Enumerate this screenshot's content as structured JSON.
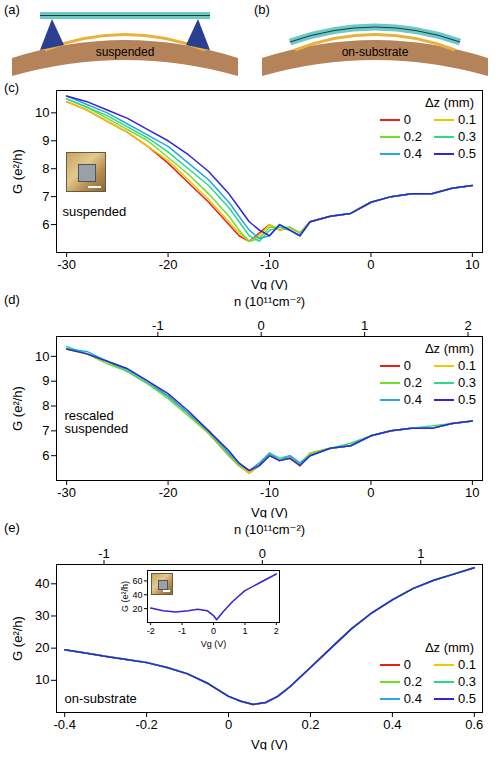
{
  "diagrams": [
    {
      "panel": "(a)",
      "label": "suspended"
    },
    {
      "panel": "(b)",
      "label": "on-substrate"
    }
  ],
  "chart_data": [
    {
      "panel": "(c)",
      "type": "line",
      "xlabel": "Vg (V)",
      "ylabel": "G (e²/h)",
      "annotations": [
        "suspended"
      ],
      "legend": "top-right",
      "legend_title": "Δz (mm)",
      "xlim": [
        -31,
        11
      ],
      "xticks": [
        -30,
        -20,
        -10,
        0,
        10
      ],
      "ylim": [
        5,
        10.8
      ],
      "yticks": [
        6,
        7,
        8,
        9,
        10
      ],
      "x": [
        -30,
        -28,
        -26,
        -24,
        -22,
        -20,
        -18,
        -16,
        -14,
        -13,
        -12,
        -11,
        -10,
        -9,
        -8,
        -7,
        -6,
        -4,
        -2,
        0,
        2,
        4,
        6,
        8,
        10
      ],
      "series": [
        {
          "name": "0",
          "color": "#e8201a",
          "values": [
            10.4,
            10.1,
            9.7,
            9.3,
            8.8,
            8.2,
            7.5,
            6.8,
            6.0,
            5.6,
            5.4,
            5.7,
            6.0,
            5.8,
            5.9,
            5.7,
            6.1,
            6.3,
            6.4,
            6.8,
            7.0,
            7.1,
            7.1,
            7.3,
            7.4
          ]
        },
        {
          "name": "0.1",
          "color": "#f0c800",
          "values": [
            10.4,
            10.1,
            9.7,
            9.3,
            8.8,
            8.3,
            7.6,
            6.9,
            6.1,
            5.7,
            5.4,
            5.6,
            6.0,
            5.8,
            5.9,
            5.7,
            6.1,
            6.3,
            6.4,
            6.8,
            7.0,
            7.1,
            7.1,
            7.3,
            7.4
          ]
        },
        {
          "name": "0.2",
          "color": "#6fe02a",
          "values": [
            10.5,
            10.2,
            9.8,
            9.4,
            9.0,
            8.4,
            7.8,
            7.1,
            6.3,
            5.8,
            5.4,
            5.5,
            5.9,
            5.9,
            5.9,
            5.7,
            6.1,
            6.3,
            6.4,
            6.8,
            7.0,
            7.1,
            7.1,
            7.3,
            7.4
          ]
        },
        {
          "name": "0.3",
          "color": "#2ed88a",
          "values": [
            10.5,
            10.2,
            9.9,
            9.5,
            9.1,
            8.6,
            8.0,
            7.4,
            6.6,
            6.1,
            5.6,
            5.4,
            5.8,
            5.9,
            5.8,
            5.6,
            6.1,
            6.3,
            6.4,
            6.8,
            7.0,
            7.1,
            7.1,
            7.3,
            7.4
          ]
        },
        {
          "name": "0.4",
          "color": "#29a9e0",
          "values": [
            10.6,
            10.3,
            10.0,
            9.6,
            9.2,
            8.8,
            8.2,
            7.6,
            6.8,
            6.3,
            5.8,
            5.5,
            5.6,
            6.0,
            5.8,
            5.6,
            6.1,
            6.3,
            6.4,
            6.8,
            7.0,
            7.1,
            7.1,
            7.3,
            7.4
          ]
        },
        {
          "name": "0.5",
          "color": "#3425d0",
          "values": [
            10.6,
            10.4,
            10.1,
            9.8,
            9.4,
            9.0,
            8.5,
            7.9,
            7.1,
            6.6,
            6.1,
            5.8,
            5.6,
            6.0,
            5.8,
            5.6,
            6.1,
            6.3,
            6.4,
            6.8,
            7.0,
            7.1,
            7.1,
            7.3,
            7.4
          ]
        }
      ]
    },
    {
      "panel": "(d)",
      "type": "line",
      "xlabel": "Vg (V)",
      "ylabel": "G (e²/h)",
      "x2label": "n (10¹¹cm⁻²)",
      "x2lim": [
        -1.98,
        2.14
      ],
      "x2ticks": [
        -1,
        0,
        1,
        2
      ],
      "annotations": [
        "rescaled suspended"
      ],
      "legend": "top-right",
      "legend_title": "Δz (mm)",
      "xlim": [
        -31,
        11
      ],
      "xticks": [
        -30,
        -20,
        -10,
        0,
        10
      ],
      "ylim": [
        5,
        10.8
      ],
      "yticks": [
        6,
        7,
        8,
        9,
        10
      ],
      "x": [
        -30,
        -28,
        -26,
        -24,
        -22,
        -20,
        -18,
        -16,
        -14,
        -13,
        -12,
        -11,
        -10,
        -9,
        -8,
        -7,
        -6,
        -4,
        -2,
        0,
        2,
        4,
        6,
        8,
        10
      ],
      "series": [
        {
          "name": "0",
          "color": "#e8201a",
          "values": [
            10.3,
            10.1,
            9.8,
            9.4,
            8.9,
            8.4,
            7.7,
            6.9,
            6.0,
            5.6,
            5.3,
            5.6,
            6.0,
            5.8,
            5.9,
            5.6,
            6.1,
            6.3,
            6.4,
            6.8,
            7.0,
            7.1,
            7.1,
            7.3,
            7.4
          ]
        },
        {
          "name": "0.1",
          "color": "#f0c800",
          "values": [
            10.3,
            10.1,
            9.8,
            9.4,
            8.9,
            8.4,
            7.7,
            6.9,
            6.1,
            5.6,
            5.3,
            5.6,
            6.0,
            5.8,
            5.9,
            5.6,
            6.1,
            6.3,
            6.4,
            6.8,
            7.0,
            7.1,
            7.1,
            7.3,
            7.4
          ]
        },
        {
          "name": "0.2",
          "color": "#6fe02a",
          "values": [
            10.3,
            10.1,
            9.7,
            9.4,
            8.9,
            8.3,
            7.6,
            6.9,
            6.0,
            5.6,
            5.4,
            5.7,
            6.1,
            5.8,
            6.0,
            5.7,
            6.1,
            6.3,
            6.4,
            6.8,
            7.0,
            7.1,
            7.1,
            7.3,
            7.4
          ]
        },
        {
          "name": "0.3",
          "color": "#2ed88a",
          "values": [
            10.4,
            10.1,
            9.8,
            9.4,
            8.9,
            8.4,
            7.7,
            7.0,
            6.1,
            5.7,
            5.4,
            5.6,
            6.1,
            5.9,
            6.0,
            5.7,
            6.0,
            6.3,
            6.5,
            6.8,
            7.0,
            7.1,
            7.2,
            7.3,
            7.4
          ]
        },
        {
          "name": "0.4",
          "color": "#29a9e0",
          "values": [
            10.3,
            10.2,
            9.8,
            9.5,
            9.0,
            8.4,
            7.7,
            7.0,
            6.1,
            5.7,
            5.4,
            5.7,
            6.1,
            5.8,
            6.0,
            5.7,
            6.0,
            6.3,
            6.4,
            6.8,
            7.0,
            7.1,
            7.1,
            7.3,
            7.4
          ]
        },
        {
          "name": "0.5",
          "color": "#3425d0",
          "values": [
            10.3,
            10.1,
            9.8,
            9.5,
            9.0,
            8.5,
            7.8,
            7.0,
            6.2,
            5.7,
            5.4,
            5.6,
            6.0,
            5.8,
            5.9,
            5.6,
            6.0,
            6.3,
            6.4,
            6.8,
            7.0,
            7.1,
            7.1,
            7.3,
            7.4
          ]
        }
      ]
    },
    {
      "panel": "(e)",
      "type": "line",
      "xlabel": "Vg (V)",
      "ylabel": "G (e²/h)",
      "x2label": "n (10¹¹cm⁻²)",
      "x2lim": [
        -1.3,
        1.39
      ],
      "x2ticks": [
        -1,
        0,
        1
      ],
      "annotations": [
        "on-substrate"
      ],
      "legend": "bottom-right",
      "legend_title": "Δz (mm)",
      "xlim": [
        -0.42,
        0.62
      ],
      "xticks": [
        -0.4,
        -0.2,
        0,
        0.2,
        0.4,
        0.6
      ],
      "ylim": [
        0,
        46
      ],
      "yticks": [
        10,
        20,
        30,
        40
      ],
      "x": [
        -0.4,
        -0.35,
        -0.3,
        -0.25,
        -0.2,
        -0.15,
        -0.1,
        -0.05,
        0,
        0.03,
        0.06,
        0.09,
        0.12,
        0.15,
        0.2,
        0.25,
        0.3,
        0.35,
        0.4,
        0.45,
        0.5,
        0.55,
        0.6
      ],
      "series": [
        {
          "name": "0",
          "color": "#e8201a",
          "values": [
            19.5,
            18.5,
            17.5,
            16.5,
            15.5,
            14.0,
            12.0,
            9.0,
            5.0,
            3.5,
            2.5,
            3.0,
            5.0,
            8.0,
            14.0,
            20.0,
            26.0,
            31.0,
            35.0,
            38.5,
            41.0,
            43.0,
            45.0
          ]
        },
        {
          "name": "0.1",
          "color": "#f0c800",
          "values": [
            19.5,
            18.5,
            17.5,
            16.6,
            15.5,
            14.0,
            12.0,
            9.0,
            5.0,
            3.5,
            2.5,
            3.0,
            5.0,
            8.0,
            14.0,
            20.0,
            26.0,
            31.0,
            35.0,
            38.5,
            41.0,
            43.0,
            45.0
          ]
        },
        {
          "name": "0.2",
          "color": "#6fe02a",
          "values": [
            19.4,
            18.5,
            17.5,
            16.5,
            15.5,
            14.0,
            12.1,
            9.0,
            5.0,
            3.5,
            2.5,
            3.0,
            5.0,
            8.1,
            14.0,
            20.0,
            26.0,
            31.0,
            35.0,
            38.5,
            41.0,
            43.1,
            45.0
          ]
        },
        {
          "name": "0.3",
          "color": "#2ed88a",
          "values": [
            19.5,
            18.6,
            17.5,
            16.5,
            15.5,
            14.0,
            12.0,
            9.0,
            5.1,
            3.5,
            2.5,
            3.0,
            5.0,
            8.0,
            14.0,
            20.0,
            26.1,
            31.0,
            35.0,
            38.5,
            41.0,
            43.0,
            45.0
          ]
        },
        {
          "name": "0.4",
          "color": "#29a9e0",
          "values": [
            19.5,
            18.5,
            17.5,
            16.5,
            15.6,
            14.0,
            12.0,
            9.0,
            5.0,
            3.5,
            2.6,
            3.0,
            5.0,
            8.0,
            14.0,
            20.1,
            26.0,
            31.0,
            35.1,
            38.5,
            41.0,
            43.0,
            45.1
          ]
        },
        {
          "name": "0.5",
          "color": "#3425d0",
          "values": [
            19.5,
            18.5,
            17.4,
            16.5,
            15.5,
            14.0,
            12.0,
            9.0,
            5.0,
            3.5,
            2.5,
            3.1,
            5.0,
            8.0,
            14.0,
            20.0,
            26.0,
            31.0,
            35.0,
            38.5,
            41.1,
            43.0,
            45.0
          ]
        }
      ],
      "inset": {
        "type": "line",
        "xlabel": "Vg (V)",
        "ylabel": "G (e²/h)",
        "color": "#3425d0",
        "xlim": [
          -2.1,
          2.1
        ],
        "xticks": [
          -2,
          -1,
          0,
          1,
          2
        ],
        "ylim": [
          0,
          75
        ],
        "yticks": [
          20,
          40,
          60
        ],
        "x": [
          -2,
          -1.6,
          -1.2,
          -0.8,
          -0.5,
          -0.2,
          0,
          0.1,
          0.3,
          0.6,
          1,
          1.5,
          2
        ],
        "values": [
          21,
          17,
          15,
          17,
          19,
          17,
          10,
          4,
          15,
          30,
          46,
          58,
          70
        ]
      }
    }
  ]
}
